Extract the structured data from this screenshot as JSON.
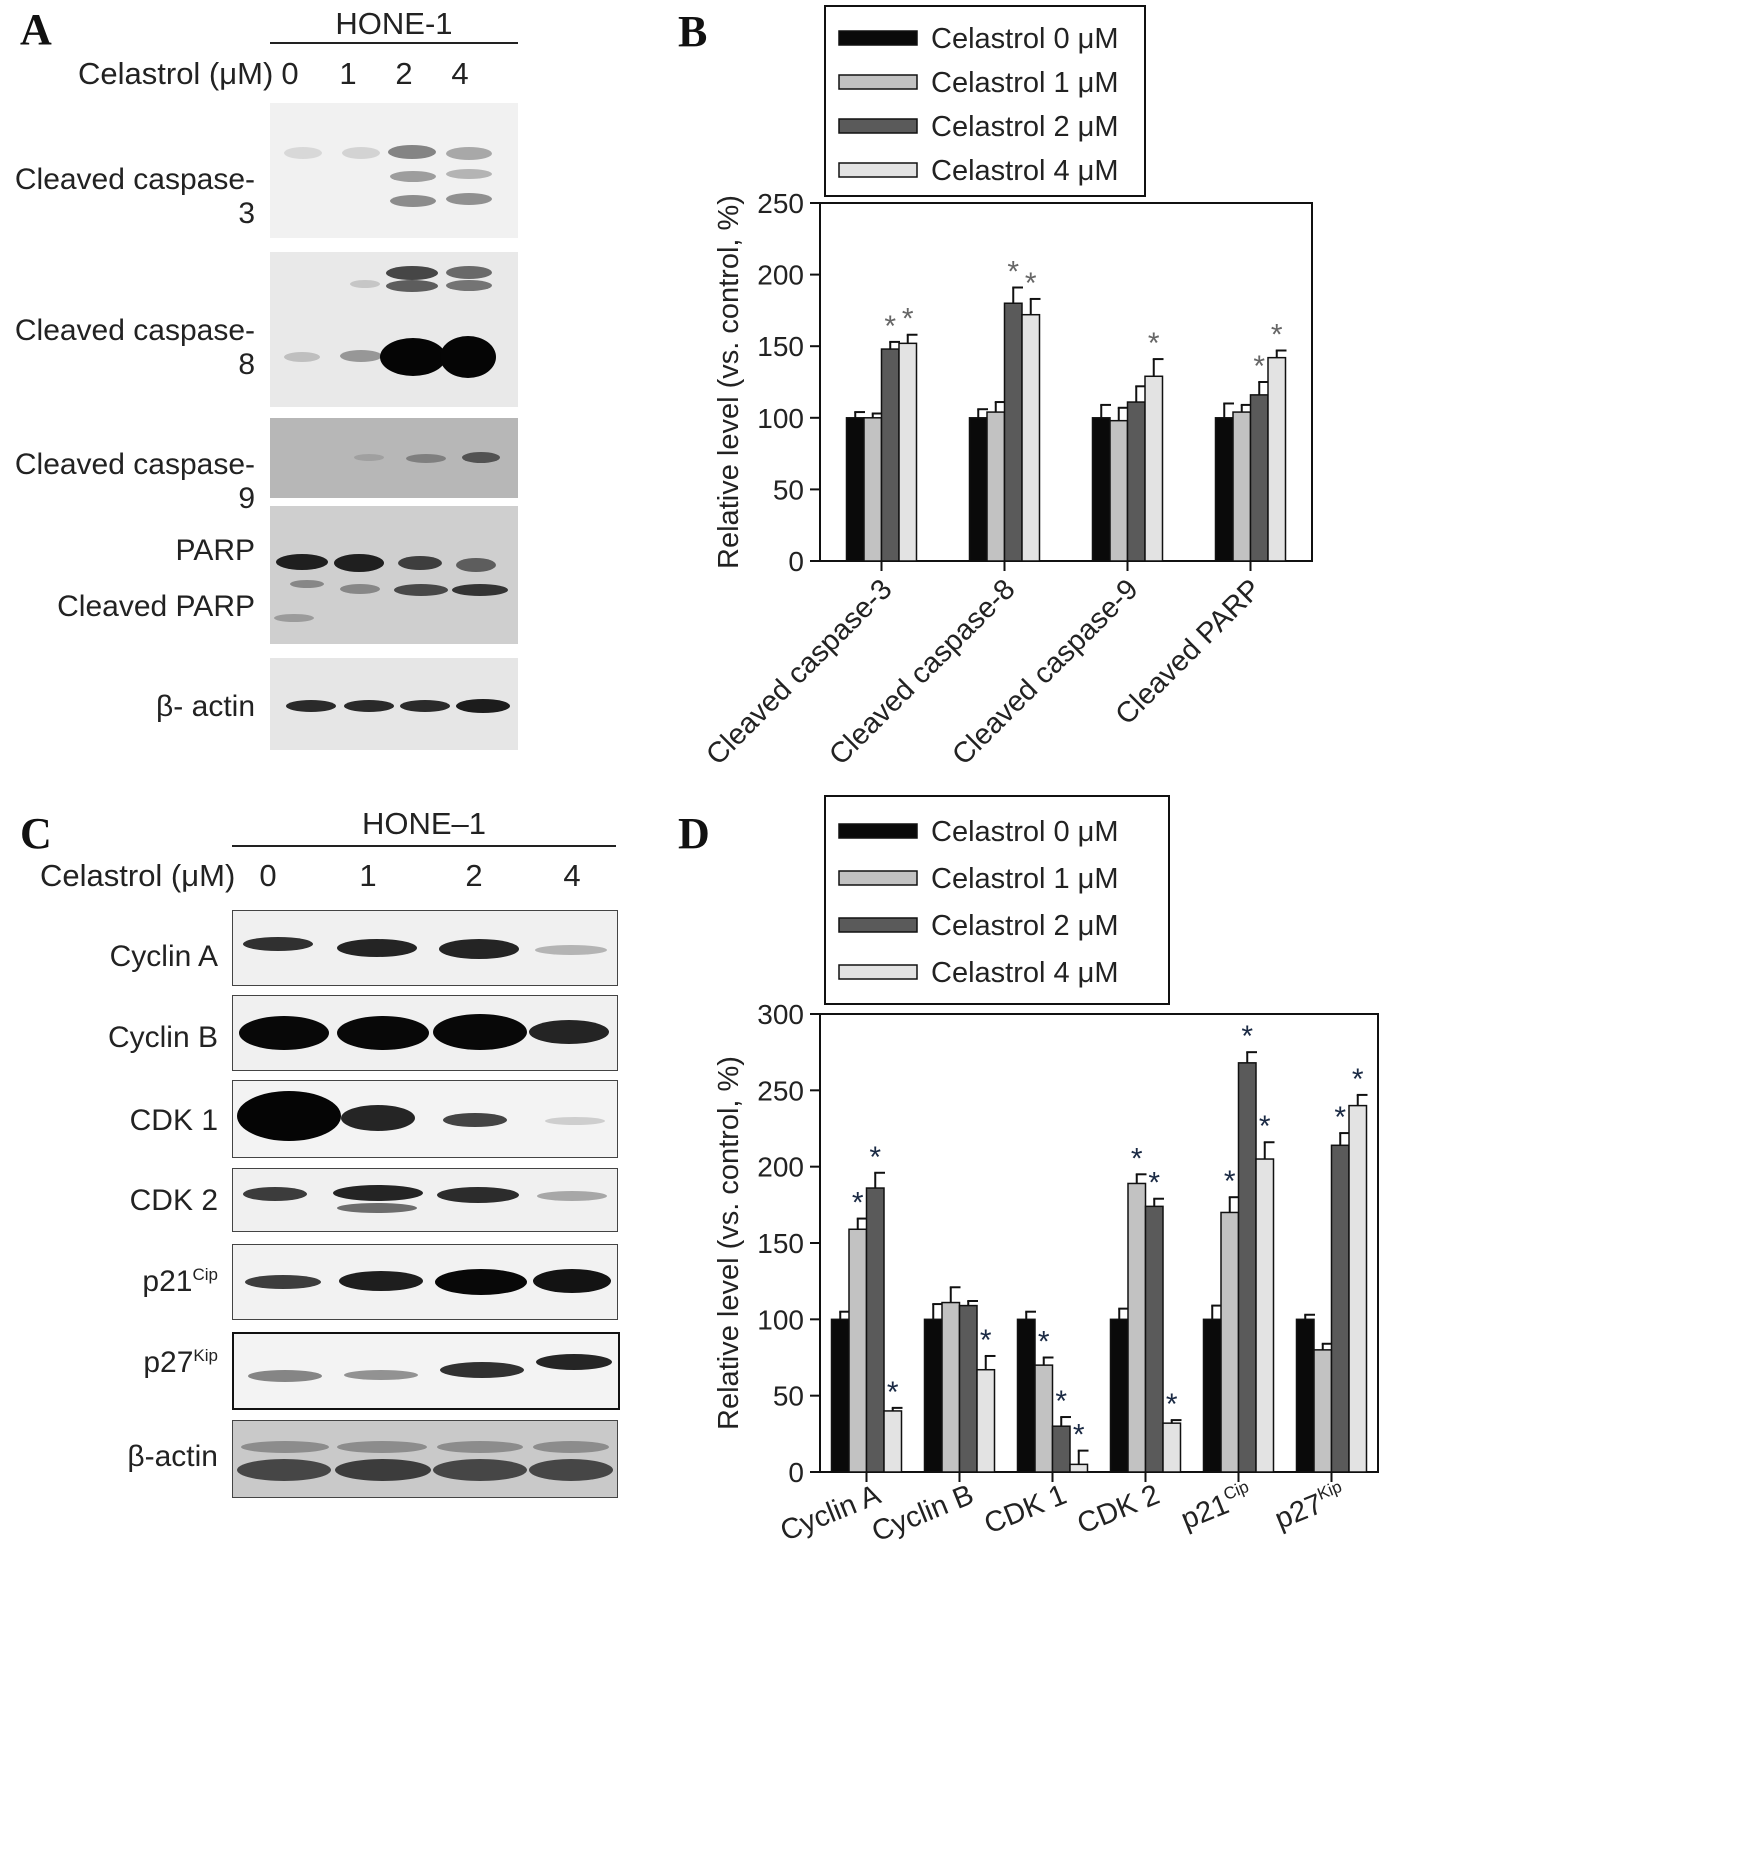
{
  "panel_a": {
    "label": "A",
    "cell_line": "HONE-1",
    "conc_label": "Celastrol (μM)",
    "lanes": [
      "0",
      "1",
      "2",
      "4"
    ],
    "rows": [
      {
        "label": "Cleaved caspase-3"
      },
      {
        "label": "Cleaved caspase-8"
      },
      {
        "label": "Cleaved caspase-9"
      },
      {
        "label": "PARP",
        "label2": "Cleaved PARP"
      },
      {
        "label": "β- actin"
      }
    ]
  },
  "panel_c": {
    "label": "C",
    "cell_line": "HONE–1",
    "conc_label": "Celastrol (μM)",
    "lanes": [
      "0",
      "1",
      "2",
      "4"
    ],
    "rows": [
      {
        "label": "Cyclin A",
        "sup": ""
      },
      {
        "label": "Cyclin B",
        "sup": ""
      },
      {
        "label": "CDK 1",
        "sup": ""
      },
      {
        "label": "CDK 2",
        "sup": ""
      },
      {
        "label": "p21",
        "sup": "Cip"
      },
      {
        "label": "p27",
        "sup": "Kip"
      },
      {
        "label": "β-actin",
        "sup": ""
      }
    ]
  },
  "chart_data": [
    {
      "panel": "B",
      "type": "bar",
      "categories": [
        "Cleaved caspase-3",
        "Cleaved caspase-8",
        "Cleaved caspase-9",
        "Cleaved PARP"
      ],
      "ylabel": "Relative level (vs. control, %)",
      "ylim": [
        0,
        250
      ],
      "yticks": [
        0,
        50,
        100,
        150,
        200,
        250
      ],
      "legend_position": "top",
      "series": [
        {
          "name": "Celastrol 0 μM",
          "color": "#0a0a0a",
          "values": [
            100,
            100,
            100,
            100
          ],
          "errors": [
            4,
            6,
            9,
            10
          ]
        },
        {
          "name": "Celastrol 1 μM",
          "color": "#c2c2c2",
          "values": [
            100,
            104,
            98,
            104
          ],
          "errors": [
            3,
            7,
            9,
            5
          ]
        },
        {
          "name": "Celastrol 2 μM",
          "color": "#5a5a5a",
          "values": [
            148,
            180,
            111,
            116
          ],
          "errors": [
            5,
            11,
            11,
            9
          ]
        },
        {
          "name": "Celastrol 4 μM",
          "color": "#e3e3e3",
          "values": [
            152,
            172,
            129,
            142
          ],
          "errors": [
            6,
            11,
            12,
            5
          ]
        }
      ],
      "significance": [
        [
          false,
          false,
          true,
          true
        ],
        [
          false,
          false,
          true,
          true
        ],
        [
          false,
          false,
          false,
          true
        ],
        [
          false,
          false,
          true,
          true
        ]
      ],
      "sig_marker": "*"
    },
    {
      "panel": "D",
      "type": "bar",
      "categories": [
        "Cyclin A",
        "Cyclin B",
        "CDK 1",
        "CDK 2",
        "p21",
        "p27"
      ],
      "category_sups": [
        "",
        "",
        "",
        "",
        "Cip",
        "Kip"
      ],
      "ylabel": "Relative level (vs. control, %)",
      "ylim": [
        0,
        300
      ],
      "yticks": [
        0,
        50,
        100,
        150,
        200,
        250,
        300
      ],
      "legend_position": "top",
      "series": [
        {
          "name": "Celastrol 0 μM",
          "color": "#0a0a0a",
          "values": [
            100,
            100,
            100,
            100,
            100,
            100
          ],
          "errors": [
            5,
            10,
            5,
            7,
            9,
            3
          ]
        },
        {
          "name": "Celastrol 1 μM",
          "color": "#c2c2c2",
          "values": [
            159,
            111,
            70,
            189,
            170,
            80
          ],
          "errors": [
            7,
            10,
            5,
            6,
            10,
            4
          ]
        },
        {
          "name": "Celastrol 2 μM",
          "color": "#5a5a5a",
          "values": [
            186,
            109,
            30,
            174,
            268,
            214
          ],
          "errors": [
            10,
            3,
            6,
            5,
            7,
            8
          ]
        },
        {
          "name": "Celastrol 4 μM",
          "color": "#e3e3e3",
          "values": [
            40,
            67,
            5,
            32,
            205,
            240
          ],
          "errors": [
            2,
            9,
            9,
            2,
            11,
            7
          ]
        }
      ],
      "significance": [
        [
          false,
          true,
          true,
          true
        ],
        [
          false,
          false,
          false,
          true
        ],
        [
          false,
          true,
          true,
          true
        ],
        [
          false,
          true,
          true,
          true
        ],
        [
          false,
          true,
          true,
          true
        ],
        [
          false,
          false,
          true,
          true
        ]
      ],
      "sig_marker": "*"
    }
  ]
}
